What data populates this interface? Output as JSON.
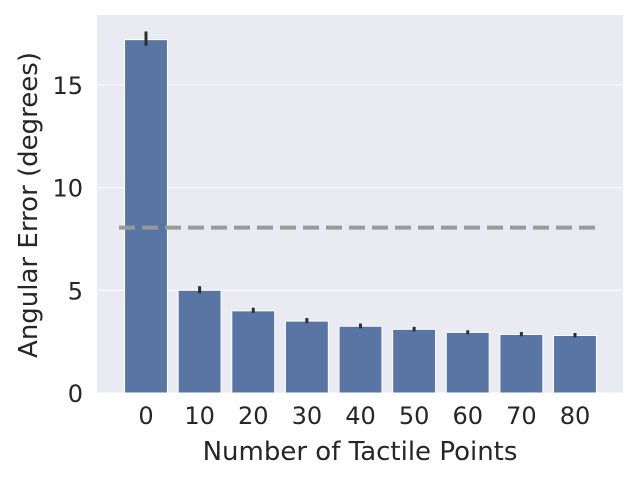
{
  "chart_data": {
    "type": "bar",
    "xlabel": "Number of Tactile Points",
    "ylabel": "Angular Error (degrees)",
    "categories": [
      "0",
      "10",
      "20",
      "30",
      "40",
      "50",
      "60",
      "70",
      "80"
    ],
    "values": [
      17.2,
      5.0,
      4.0,
      3.5,
      3.25,
      3.1,
      2.95,
      2.85,
      2.8
    ],
    "error_bars": [
      [
        16.9,
        17.6
      ],
      [
        4.85,
        5.2
      ],
      [
        3.9,
        4.15
      ],
      [
        3.4,
        3.65
      ],
      [
        3.15,
        3.38
      ],
      [
        3.0,
        3.22
      ],
      [
        2.86,
        3.05
      ],
      [
        2.76,
        2.97
      ],
      [
        2.7,
        2.92
      ]
    ],
    "reference_line": {
      "y": 8.05,
      "style": "dashed"
    },
    "ylim": [
      0,
      18.4
    ],
    "yticks": [
      0,
      5,
      10,
      15
    ],
    "ytick_labels": [
      "0",
      "5",
      "10",
      "15"
    ],
    "grid": true,
    "colors": {
      "bar": "#5975a4",
      "background": "#eaeaf2",
      "grid": "#ffffff",
      "error_bar": "#2f2f2f",
      "reference_line": "#999999",
      "text": "#262626"
    }
  }
}
